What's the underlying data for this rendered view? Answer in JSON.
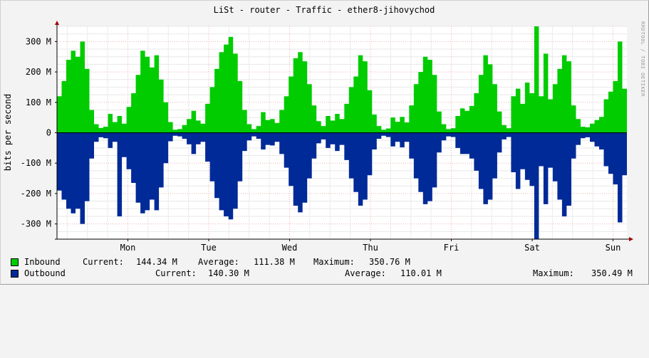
{
  "chart_data": {
    "type": "area",
    "title": "LiSt - router - Traffic - ether8-jihovychod",
    "ylabel": "bits per second",
    "watermark": "RRDTOOL / TOBI OETIKER",
    "ylim": [
      -350000000,
      350000000
    ],
    "yticks": [
      {
        "value": 300000000,
        "label": "300 M"
      },
      {
        "value": 200000000,
        "label": "200 M"
      },
      {
        "value": 100000000,
        "label": "100 M"
      },
      {
        "value": 0,
        "label": "0"
      },
      {
        "value": -100000000,
        "label": "-100 M"
      },
      {
        "value": -200000000,
        "label": "-200 M"
      },
      {
        "value": -300000000,
        "label": "-300 M"
      }
    ],
    "xticks": [
      "Mon",
      "Tue",
      "Wed",
      "Thu",
      "Fri",
      "Sat",
      "Sun"
    ],
    "series": [
      {
        "name": "Inbound",
        "color": "#00cc00",
        "direction": "up",
        "values": [
          120000000,
          170000000,
          240000000,
          270000000,
          250000000,
          300000000,
          210000000,
          75000000,
          28000000,
          16000000,
          20000000,
          62000000,
          35000000,
          55000000,
          30000000,
          85000000,
          130000000,
          190000000,
          270000000,
          250000000,
          215000000,
          255000000,
          175000000,
          100000000,
          35000000,
          10000000,
          12000000,
          25000000,
          45000000,
          72000000,
          40000000,
          30000000,
          95000000,
          150000000,
          210000000,
          265000000,
          290000000,
          315000000,
          260000000,
          170000000,
          75000000,
          28000000,
          12000000,
          22000000,
          68000000,
          42000000,
          45000000,
          32000000,
          75000000,
          120000000,
          185000000,
          245000000,
          265000000,
          235000000,
          160000000,
          90000000,
          38000000,
          22000000,
          55000000,
          40000000,
          62000000,
          45000000,
          95000000,
          150000000,
          185000000,
          255000000,
          235000000,
          140000000,
          60000000,
          22000000,
          10000000,
          14000000,
          50000000,
          36000000,
          52000000,
          34000000,
          90000000,
          160000000,
          200000000,
          250000000,
          240000000,
          190000000,
          70000000,
          28000000,
          12000000,
          15000000,
          55000000,
          80000000,
          72000000,
          88000000,
          130000000,
          190000000,
          255000000,
          225000000,
          160000000,
          70000000,
          25000000,
          15000000,
          120000000,
          145000000,
          95000000,
          165000000,
          130000000,
          350000000,
          120000000,
          260000000,
          110000000,
          160000000,
          210000000,
          255000000,
          235000000,
          90000000,
          45000000,
          20000000,
          18000000,
          30000000,
          42000000,
          52000000,
          110000000,
          135000000,
          170000000,
          300000000,
          145000000
        ]
      },
      {
        "name": "Outbound",
        "color": "#002a97",
        "direction": "down",
        "values": [
          190000000,
          220000000,
          250000000,
          265000000,
          250000000,
          300000000,
          225000000,
          85000000,
          30000000,
          15000000,
          18000000,
          50000000,
          30000000,
          275000000,
          80000000,
          120000000,
          165000000,
          230000000,
          265000000,
          255000000,
          220000000,
          255000000,
          180000000,
          100000000,
          28000000,
          10000000,
          12000000,
          20000000,
          38000000,
          70000000,
          38000000,
          30000000,
          95000000,
          160000000,
          215000000,
          255000000,
          275000000,
          285000000,
          250000000,
          160000000,
          60000000,
          25000000,
          12000000,
          20000000,
          55000000,
          40000000,
          42000000,
          30000000,
          70000000,
          115000000,
          175000000,
          240000000,
          262000000,
          230000000,
          150000000,
          85000000,
          35000000,
          22000000,
          50000000,
          38000000,
          60000000,
          40000000,
          90000000,
          150000000,
          195000000,
          240000000,
          220000000,
          140000000,
          55000000,
          20000000,
          10000000,
          14000000,
          45000000,
          30000000,
          48000000,
          30000000,
          85000000,
          150000000,
          195000000,
          235000000,
          225000000,
          180000000,
          65000000,
          25000000,
          12000000,
          14000000,
          50000000,
          70000000,
          70000000,
          85000000,
          125000000,
          185000000,
          235000000,
          220000000,
          150000000,
          65000000,
          22000000,
          14000000,
          130000000,
          185000000,
          120000000,
          155000000,
          175000000,
          350000000,
          110000000,
          235000000,
          115000000,
          160000000,
          220000000,
          275000000,
          240000000,
          85000000,
          40000000,
          18000000,
          15000000,
          30000000,
          45000000,
          55000000,
          110000000,
          135000000,
          170000000,
          295000000,
          140000000
        ]
      }
    ],
    "legend": [
      {
        "name": "Inbound",
        "color": "#00cc00",
        "current_label": "Current:",
        "current": "144.34 M",
        "average_label": "Average:",
        "average": "111.38 M",
        "maximum_label": "Maximum:",
        "maximum": "350.76 M"
      },
      {
        "name": "Outbound",
        "color": "#002a97",
        "current_label": "Current:",
        "current": "140.30 M",
        "average_label": "Average:",
        "average": "110.01 M",
        "maximum_label": "Maximum:",
        "maximum": "350.49 M"
      }
    ]
  }
}
